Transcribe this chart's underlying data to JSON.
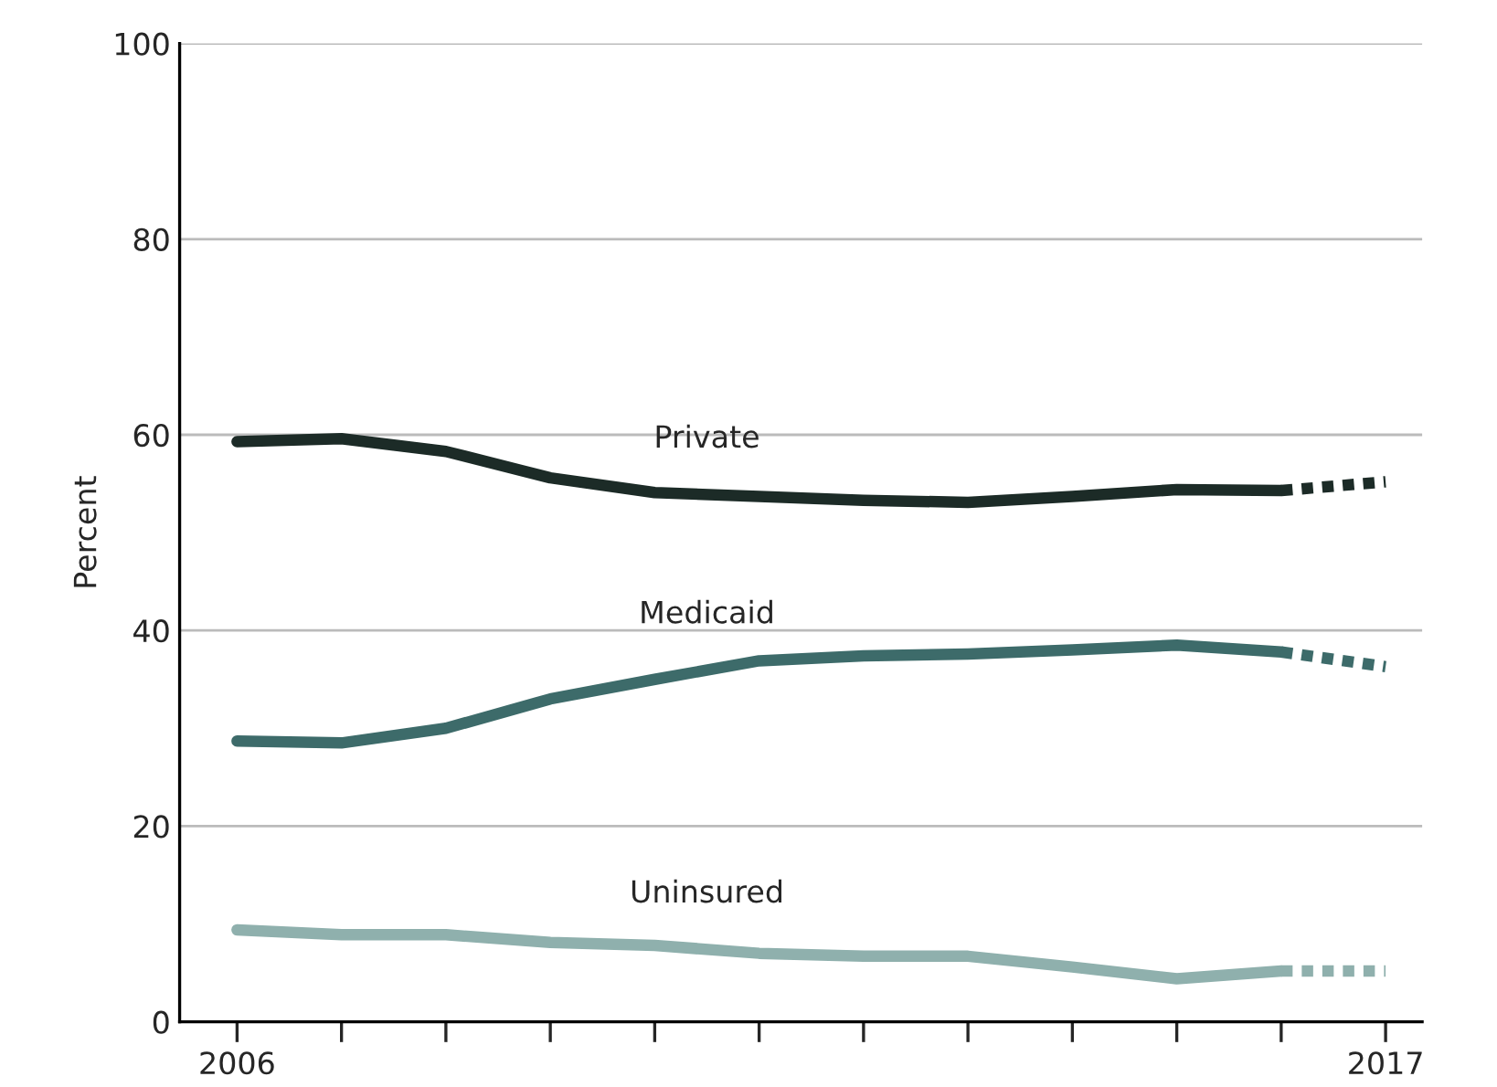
{
  "chart_data": {
    "type": "line",
    "ylabel": "Percent",
    "xlim": [
      2005.45,
      2017.35
    ],
    "xticks": [
      {
        "value": 2006,
        "label": "2006"
      },
      {
        "value": 2007,
        "label": null
      },
      {
        "value": 2008,
        "label": null
      },
      {
        "value": 2009,
        "label": null
      },
      {
        "value": 2010,
        "label": null
      },
      {
        "value": 2011,
        "label": null
      },
      {
        "value": 2012,
        "label": null
      },
      {
        "value": 2013,
        "label": null
      },
      {
        "value": 2014,
        "label": null
      },
      {
        "value": 2015,
        "label": null
      },
      {
        "value": 2016,
        "label": null
      },
      {
        "value": 2017,
        "label": "2017"
      }
    ],
    "ylim": [
      0,
      100
    ],
    "yticks": [
      0,
      20,
      40,
      60,
      80,
      100
    ],
    "grid": "y",
    "line_style": "solid",
    "marker": "none",
    "series": [
      {
        "name": "Private",
        "color": "#1c2b27",
        "x": [
          2006,
          2007,
          2008,
          2009,
          2010,
          2011,
          2012,
          2013,
          2014,
          2015,
          2016
        ],
        "values": [
          59.3,
          59.6,
          58.3,
          55.6,
          54.1,
          53.7,
          53.3,
          53.1,
          53.7,
          54.4,
          54.3
        ]
      },
      {
        "color": "#1c2b27",
        "line_style": "dotted",
        "x": [
          2016,
          2017
        ],
        "values": [
          54.3,
          55.2
        ]
      },
      {
        "name": "Medicaid",
        "color": "#3d6b6a",
        "x": [
          2006,
          2007,
          2008,
          2009,
          2010,
          2011,
          2012,
          2013,
          2014,
          2015,
          2016
        ],
        "values": [
          28.7,
          28.5,
          30.0,
          33.0,
          35.0,
          36.9,
          37.4,
          37.6,
          38.0,
          38.5,
          37.8
        ]
      },
      {
        "color": "#3d6b6a",
        "line_style": "dotted",
        "x": [
          2016,
          2017
        ],
        "values": [
          37.8,
          36.3
        ]
      },
      {
        "name": "Uninsured",
        "color": "#8fb0ad",
        "x": [
          2006,
          2007,
          2008,
          2009,
          2010,
          2011,
          2012,
          2013,
          2014,
          2015,
          2016
        ],
        "values": [
          9.4,
          8.9,
          8.9,
          8.1,
          7.8,
          7.0,
          6.7,
          6.7,
          5.6,
          4.4,
          5.2
        ]
      },
      {
        "color": "#8fb0ad",
        "line_style": "dotted",
        "x": [
          2016,
          2017
        ],
        "values": [
          5.2,
          5.2
        ]
      }
    ]
  }
}
